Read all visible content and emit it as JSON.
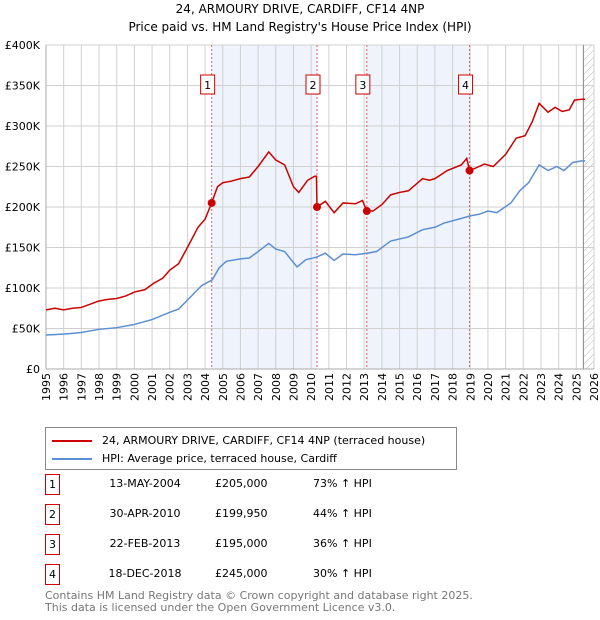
{
  "chart_data": {
    "type": "line",
    "title": "24, ARMOURY DRIVE, CARDIFF, CF14 4NP",
    "subtitle": "Price paid vs. HM Land Registry's House Price Index (HPI)",
    "xlim": [
      1995,
      2026
    ],
    "ylim": [
      0,
      400000
    ],
    "y_ticks": [
      {
        "v": 0,
        "l": "£0"
      },
      {
        "v": 50000,
        "l": "£50K"
      },
      {
        "v": 100000,
        "l": "£100K"
      },
      {
        "v": 150000,
        "l": "£150K"
      },
      {
        "v": 200000,
        "l": "£200K"
      },
      {
        "v": 250000,
        "l": "£250K"
      },
      {
        "v": 300000,
        "l": "£300K"
      },
      {
        "v": 350000,
        "l": "£350K"
      },
      {
        "v": 400000,
        "l": "£400K"
      }
    ],
    "x_ticks": [
      "1995",
      "1996",
      "1997",
      "1998",
      "1999",
      "2000",
      "2001",
      "2002",
      "2003",
      "2004",
      "2005",
      "2006",
      "2007",
      "2008",
      "2009",
      "2010",
      "2011",
      "2012",
      "2013",
      "2014",
      "2015",
      "2016",
      "2017",
      "2018",
      "2019",
      "2020",
      "2021",
      "2022",
      "2023",
      "2024",
      "2025",
      "2026"
    ],
    "grid": true,
    "forecast_from": 2025.4,
    "shaded_ranges": [
      [
        2004.37,
        2010.33
      ],
      [
        2013.15,
        2018.96
      ]
    ],
    "series": [
      {
        "name": "24, ARMOURY DRIVE, CARDIFF, CF14 4NP (terraced house)",
        "color": "#cc0000",
        "x": [
          1995,
          1995.5,
          1996,
          1996.5,
          1997,
          1997.5,
          1998,
          1998.5,
          1999,
          1999.5,
          2000,
          2000.6,
          2001.1,
          2001.6,
          2002,
          2002.5,
          2003,
          2003.6,
          2004,
          2004.37,
          2004.7,
          2005,
          2005.5,
          2006,
          2006.5,
          2007,
          2007.6,
          2008,
          2008.5,
          2009,
          2009.3,
          2009.8,
          2010.2,
          2010.3,
          2010.33,
          2010.8,
          2011.3,
          2011.8,
          2012.5,
          2012.9,
          2013.15,
          2013.5,
          2014,
          2014.5,
          2015,
          2015.5,
          2016.3,
          2016.7,
          2017,
          2017.7,
          2018.5,
          2018.8,
          2018.96,
          2019.3,
          2019.8,
          2020.3,
          2021,
          2021.6,
          2022.1,
          2022.5,
          2022.9,
          2023.4,
          2023.8,
          2024.2,
          2024.6,
          2024.9,
          2025.3,
          2025.5
        ],
        "y": [
          73000,
          75000,
          73000,
          75000,
          76000,
          80000,
          84000,
          86000,
          87000,
          90000,
          95000,
          98000,
          106000,
          112000,
          122000,
          130000,
          150000,
          175000,
          185000,
          205000,
          225000,
          230000,
          232000,
          235000,
          237000,
          250000,
          268000,
          258000,
          252000,
          225000,
          218000,
          233000,
          238000,
          238000,
          199950,
          207000,
          193000,
          205000,
          204000,
          208000,
          195000,
          195000,
          203000,
          215000,
          218000,
          220000,
          235000,
          233000,
          235000,
          245000,
          252000,
          260000,
          245000,
          248000,
          253000,
          250000,
          265000,
          285000,
          288000,
          305000,
          328000,
          317000,
          323000,
          318000,
          320000,
          332000,
          333000,
          333000
        ]
      },
      {
        "name": "HPI: Average price, terraced house, Cardiff",
        "color": "#5b8fd4",
        "x": [
          1995,
          1996,
          1997,
          1998,
          1999,
          2000,
          2001,
          2002,
          2002.5,
          2003,
          2003.8,
          2004.4,
          2004.8,
          2005.2,
          2006,
          2006.5,
          2007,
          2007.6,
          2008,
          2008.5,
          2009.2,
          2009.7,
          2010.3,
          2010.8,
          2011.3,
          2011.8,
          2012.5,
          2013.2,
          2013.7,
          2014.5,
          2015.5,
          2016.3,
          2017,
          2017.5,
          2018.5,
          2019,
          2019.5,
          2020,
          2020.5,
          2021.3,
          2021.8,
          2022.3,
          2022.9,
          2023.4,
          2023.9,
          2024.3,
          2024.8,
          2025.3,
          2025.5
        ],
        "y": [
          42000,
          43000,
          45000,
          49000,
          51000,
          55000,
          61000,
          70000,
          74000,
          85000,
          103000,
          110000,
          125000,
          133000,
          136000,
          137000,
          145000,
          155000,
          148000,
          145000,
          126000,
          135000,
          138000,
          143000,
          134000,
          142000,
          141000,
          143000,
          145000,
          158000,
          163000,
          172000,
          175000,
          180000,
          186000,
          189000,
          191000,
          195000,
          193000,
          205000,
          220000,
          230000,
          252000,
          245000,
          250000,
          245000,
          255000,
          257000,
          257000
        ]
      }
    ],
    "sales": [
      {
        "n": "1",
        "x": 2004.37,
        "y": 205000,
        "date": "13-MAY-2004",
        "price": "£205,000",
        "hpi": "73% ↑ HPI"
      },
      {
        "n": "2",
        "x": 2010.33,
        "y": 199950,
        "date": "30-APR-2010",
        "price": "£199,950",
        "hpi": "44% ↑ HPI"
      },
      {
        "n": "3",
        "x": 2013.15,
        "y": 195000,
        "date": "22-FEB-2013",
        "price": "£195,000",
        "hpi": "36% ↑ HPI"
      },
      {
        "n": "4",
        "x": 2018.96,
        "y": 245000,
        "date": "18-DEC-2018",
        "price": "£245,000",
        "hpi": "30% ↑ HPI"
      }
    ]
  },
  "legend": {
    "red": "24, ARMOURY DRIVE, CARDIFF, CF14 4NP (terraced house)",
    "blue": "HPI: Average price, terraced house, Cardiff"
  },
  "footer": {
    "line1": "Contains HM Land Registry data © Crown copyright and database right 2025.",
    "line2": "This data is licensed under the Open Government Licence v3.0."
  }
}
